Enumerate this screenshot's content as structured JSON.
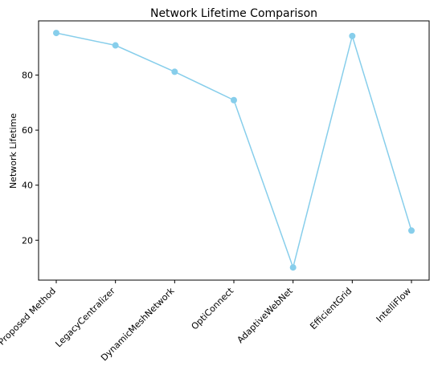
{
  "chart_data": {
    "type": "line",
    "title": "Network Lifetime Comparison",
    "xlabel": "",
    "ylabel": "Network Lifetime",
    "categories": [
      "Proposed Method",
      "LegacyCentralizer",
      "DynamicMeshNetwork",
      "OptiConnect",
      "AdaptiveWebNet",
      "EfficientGrid",
      "IntelliFlow"
    ],
    "series": [
      {
        "values": [
          95.3,
          90.8,
          81.2,
          70.9,
          10.1,
          94.2,
          23.5
        ]
      }
    ],
    "ylim": [
      5.5,
      99.7
    ],
    "yticks": [
      20,
      40,
      60,
      80
    ],
    "grid": false,
    "legend": "none",
    "colors": {
      "line": "#87ceeb",
      "axis": "#000000"
    }
  }
}
